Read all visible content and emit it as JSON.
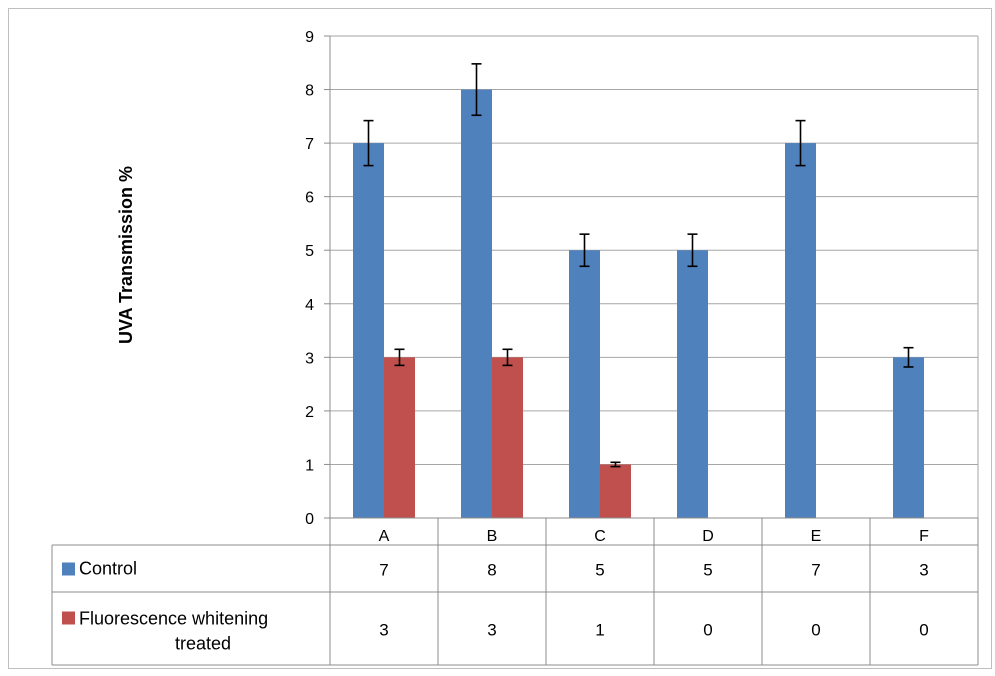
{
  "chart_data": {
    "type": "bar",
    "ylabel": "UVA Transmission %",
    "ylim": [
      0,
      9
    ],
    "yticks": [
      0,
      1,
      2,
      3,
      4,
      5,
      6,
      7,
      8,
      9
    ],
    "categories": [
      "A",
      "B",
      "C",
      "D",
      "E",
      "F"
    ],
    "grid": true,
    "legend": "data-table",
    "series": [
      {
        "name": "Control",
        "color": "#4f81bd",
        "values": [
          7,
          8,
          5,
          5,
          7,
          3
        ],
        "errors": [
          0.42,
          0.48,
          0.3,
          0.3,
          0.42,
          0.18
        ],
        "table_labels": [
          "7",
          "8",
          "5",
          "5",
          "7",
          "3"
        ]
      },
      {
        "name": "Fluorescence whitening treated",
        "name_lines": [
          "Fluorescence whitening",
          "treated"
        ],
        "color": "#c0504d",
        "values": [
          3,
          3,
          1,
          0,
          0,
          0
        ],
        "errors": [
          0.15,
          0.15,
          0.04,
          0,
          0,
          0
        ],
        "table_labels": [
          "3",
          "3",
          "1",
          "0",
          "0",
          "0"
        ]
      }
    ]
  }
}
